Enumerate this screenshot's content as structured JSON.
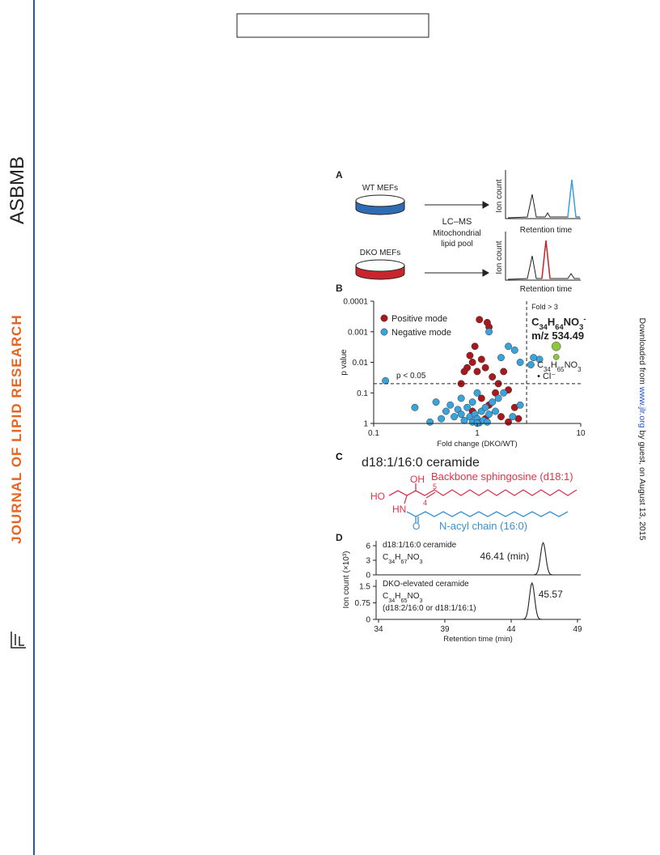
{
  "sidebar": {
    "journal": "JOURNAL OF LIPID RESEARCH",
    "society": "ASBMB"
  },
  "download_note": {
    "prefix": "Downloaded from ",
    "link": "www.jlr.org",
    "suffix": " by guest, on August 13, 2015"
  },
  "figure": {
    "panel_a": {
      "label": "A",
      "wt": "WT MEFs",
      "dko": "DKO MEFs",
      "method": [
        "LC–MS",
        "Mitochondrial",
        "lipid pool"
      ],
      "y_label": "Ion count",
      "x_label": "Retention time"
    },
    "panel_b": {
      "label": "B",
      "type": "scatter",
      "xlabel": "Fold change (DKO/WT)",
      "ylabel": "p value",
      "xlog": true,
      "ylog": true,
      "xlim": [
        0.1,
        10
      ],
      "ylim": [
        1,
        0.0001
      ],
      "xticks": [
        0.1,
        1,
        10
      ],
      "yticks": [
        1,
        0.1,
        0.01,
        0.001,
        0.0001
      ],
      "p_threshold": 0.05,
      "p_threshold_label": "p < 0.05",
      "fold_threshold": 3,
      "fold_threshold_label": "Fold > 3",
      "target_formula": {
        "parts": [
          "C",
          "34",
          "H",
          "64",
          "NO",
          "3"
        ],
        "sup": "-"
      },
      "target_mz": "m/z 534.49",
      "adduct_formula": {
        "parts": [
          "C",
          "34",
          "H",
          "65",
          "NO",
          "3"
        ]
      },
      "adduct_note": "• Cl⁻",
      "series": [
        {
          "name": "Positive mode",
          "color": "#a8181c",
          "x": [
            0.95,
            1.05,
            1.25,
            1.3,
            0.85,
            0.9,
            0.8,
            0.75,
            1.0,
            1.1,
            1.2,
            1.4,
            1.6,
            1.8,
            2.0,
            1.5,
            0.7,
            1.1,
            1.3,
            2.3,
            1.7,
            0.9,
            2.5,
            2.0,
            1.2
          ],
          "values": [
            0.003,
            0.0004,
            0.0005,
            0.0007,
            0.006,
            0.01,
            0.015,
            0.02,
            0.02,
            0.008,
            0.015,
            0.03,
            0.05,
            0.02,
            0.08,
            0.1,
            0.05,
            0.15,
            0.25,
            0.3,
            0.6,
            0.4,
            0.7,
            0.9,
            0.7
          ]
        },
        {
          "name": "Negative mode",
          "color": "#3ba3dc",
          "x": [
            0.13,
            1.7,
            2.0,
            2.3,
            2.6,
            3.3,
            4.0,
            3.5,
            1.3,
            0.25,
            0.4,
            0.5,
            0.55,
            0.6,
            0.65,
            0.7,
            0.75,
            0.8,
            0.85,
            0.9,
            0.95,
            1.0,
            1.05,
            1.1,
            1.15,
            1.2,
            1.3,
            1.4,
            1.5,
            1.6,
            1.8,
            2.2,
            2.6,
            0.35,
            0.45,
            1.0,
            0.9,
            1.25,
            0.7,
            1.0
          ],
          "values": [
            0.04,
            0.007,
            0.003,
            0.004,
            0.01,
            0.012,
            0.008,
            0.007,
            0.001,
            0.3,
            0.2,
            0.4,
            0.25,
            0.6,
            0.35,
            0.5,
            0.8,
            0.3,
            0.6,
            0.9,
            0.5,
            0.7,
            0.95,
            0.4,
            0.8,
            0.3,
            0.5,
            0.2,
            0.4,
            0.15,
            0.1,
            0.6,
            0.25,
            0.9,
            0.7,
            0.98,
            0.2,
            0.9,
            0.15,
            0.1
          ]
        },
        {
          "color": "#8dc63f",
          "x": [
            5.8,
            5.8
          ],
          "values": [
            0.003,
            0.0067
          ]
        }
      ]
    },
    "panel_c": {
      "label": "C",
      "title": "d18:1/16:0 ceramide",
      "backbone": "Backbone sphingosine (d18:1)",
      "acyl": "N-acyl chain (16:0)",
      "atoms": {
        "oh": "OH",
        "ho": "HO",
        "hn": "HN",
        "o": "O",
        "c5": "5",
        "c4": "4"
      }
    },
    "panel_d": {
      "label": "D",
      "ylabel": "Ion count (×10³)",
      "xlabel": "Retention time (min)",
      "xlim": [
        34,
        49
      ],
      "xticks": [
        34,
        39,
        44,
        49
      ],
      "traces": [
        {
          "name": "d18:1/16:0 ceramide",
          "formula": {
            "parts": [
              "C",
              "34",
              "H",
              "67",
              "NO",
              "3"
            ]
          },
          "peak_rt": 46.41,
          "peak_label": "46.41 (min)",
          "peak_height": 6.6,
          "ylim": [
            0,
            7
          ],
          "yticks": [
            0,
            3,
            6
          ]
        },
        {
          "name": "DKO-elevated ceramide",
          "formula": {
            "parts": [
              "C",
              "34",
              "H",
              "65",
              "NO",
              "3"
            ]
          },
          "note": "(d18:2/16:0 or d18:1/16:1)",
          "peak_rt": 45.57,
          "peak_label": "45.57",
          "peak_height": 1.65,
          "ylim": [
            0,
            1.8
          ],
          "yticks": [
            0,
            0.75,
            1.5
          ]
        }
      ]
    }
  }
}
